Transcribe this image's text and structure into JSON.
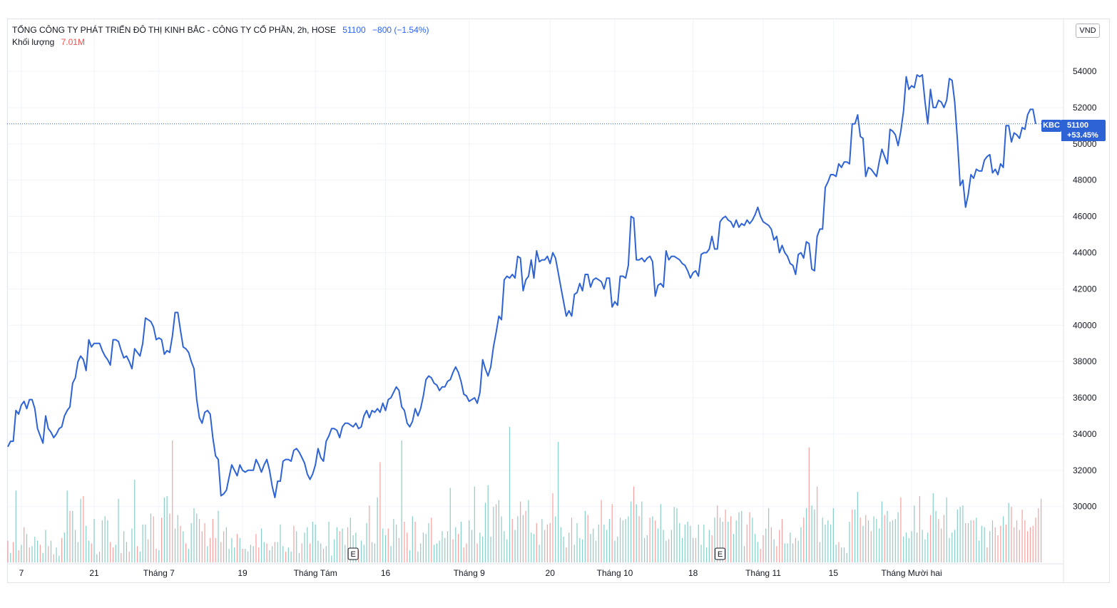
{
  "header": {
    "title": "TỔNG CÔNG TY PHÁT TRIỂN ĐÔ THỊ KINH BẮC - CÔNG TY CỔ PHẦN, 2h, HOSE",
    "price": "51100",
    "change": "−800 (−1.54%)",
    "volume_label": "Khối lượng",
    "volume_value": "7.01M"
  },
  "currency": "VND",
  "last_price_tag": {
    "symbol": "KBC",
    "price": "51100",
    "change_pct": "+53.45%"
  },
  "colors": {
    "line": "#2e63d6",
    "vol_up": "#26a69a",
    "vol_down": "#ef5350",
    "grid": "#f0f3fa"
  },
  "chart_data": {
    "type": "line",
    "title": "TỔNG CÔNG TY PHÁT TRIỂN ĐÔ THỊ KINH BẮC - CÔNG TY CỔ PHẦN, 2h, HOSE",
    "ylim": [
      28300,
      56200
    ],
    "y_ticks": [
      30000,
      32000,
      34000,
      36000,
      38000,
      40000,
      42000,
      44000,
      46000,
      48000,
      50000,
      52000,
      54000
    ],
    "x_ticks": [
      {
        "label": "7",
        "i": 5
      },
      {
        "label": "21",
        "i": 32
      },
      {
        "label": "Tháng 7",
        "i": 56
      },
      {
        "label": "19",
        "i": 87
      },
      {
        "label": "Tháng Tám",
        "i": 114
      },
      {
        "label": "16",
        "i": 140
      },
      {
        "label": "Tháng 9",
        "i": 171
      },
      {
        "label": "20",
        "i": 201
      },
      {
        "label": "Tháng 10",
        "i": 225
      },
      {
        "label": "18",
        "i": 254
      },
      {
        "label": "Tháng 11",
        "i": 280
      },
      {
        "label": "15",
        "i": 306
      },
      {
        "label": "Tháng Mười hai",
        "i": 335
      }
    ],
    "events": [
      {
        "label": "E",
        "i": 128
      },
      {
        "label": "E",
        "i": 264
      }
    ],
    "price": [
      33300,
      33600,
      33600,
      35300,
      35100,
      35600,
      35800,
      35400,
      35900,
      35900,
      35400,
      34300,
      33900,
      33500,
      35000,
      34300,
      34100,
      33800,
      34000,
      34300,
      34400,
      35000,
      35300,
      35500,
      36800,
      37100,
      38000,
      38300,
      38100,
      37500,
      39200,
      38800,
      39000,
      39000,
      39000,
      38600,
      38300,
      38100,
      37800,
      39200,
      39200,
      39100,
      38600,
      38200,
      38300,
      38000,
      37600,
      38700,
      38500,
      38300,
      39000,
      40400,
      40300,
      40200,
      39900,
      39200,
      39300,
      39200,
      38400,
      38600,
      38500,
      39400,
      40700,
      40700,
      39700,
      38800,
      38700,
      38500,
      38000,
      37600,
      35900,
      34900,
      34600,
      35200,
      35300,
      35100,
      33800,
      32800,
      32600,
      30600,
      30700,
      30900,
      31600,
      32300,
      32000,
      31700,
      32300,
      32000,
      31900,
      32000,
      32000,
      32000,
      32600,
      32300,
      31900,
      32300,
      32600,
      32000,
      31100,
      30500,
      31400,
      31400,
      32500,
      32600,
      32600,
      32500,
      33100,
      33200,
      33000,
      32700,
      32400,
      31800,
      31500,
      31800,
      32300,
      33200,
      32700,
      32500,
      33600,
      33900,
      34300,
      34300,
      34200,
      33800,
      34400,
      34600,
      34600,
      34500,
      34400,
      34600,
      34300,
      34400,
      35000,
      35300,
      34900,
      35300,
      35200,
      35400,
      35200,
      35700,
      35300,
      35900,
      36000,
      36300,
      36600,
      36400,
      35500,
      35300,
      34600,
      34400,
      34700,
      35400,
      35000,
      35400,
      36100,
      37000,
      37200,
      37100,
      36800,
      36700,
      36400,
      36600,
      36600,
      36900,
      37000,
      37400,
      37700,
      37400,
      36900,
      36200,
      36100,
      35800,
      35900,
      36000,
      35700,
      36300,
      38100,
      37600,
      37200,
      37700,
      38800,
      39600,
      40500,
      40300,
      42500,
      42700,
      42600,
      42800,
      42600,
      43800,
      43700,
      41900,
      42500,
      42700,
      43600,
      42600,
      44100,
      43500,
      43600,
      43600,
      43800,
      43400,
      44000,
      43700,
      42900,
      42100,
      41300,
      40500,
      40800,
      40500,
      41700,
      41800,
      42300,
      41900,
      42800,
      42800,
      42100,
      42500,
      42600,
      42500,
      42400,
      42000,
      42600,
      42600,
      41000,
      41300,
      41100,
      42700,
      42700,
      42600,
      43300,
      46000,
      45900,
      43600,
      43600,
      43700,
      43500,
      43700,
      43800,
      43500,
      41600,
      42200,
      42300,
      42100,
      44100,
      43600,
      43800,
      43800,
      43700,
      43600,
      43400,
      43300,
      43000,
      42600,
      42900,
      43000,
      42700,
      43900,
      44000,
      44000,
      44200,
      44900,
      44200,
      44200,
      45700,
      45900,
      46000,
      45800,
      45700,
      45400,
      45800,
      45400,
      45600,
      45500,
      45800,
      45600,
      45800,
      46100,
      46500,
      46000,
      45700,
      45600,
      45500,
      45300,
      44700,
      44900,
      44000,
      44400,
      44000,
      43800,
      43400,
      43300,
      42800,
      43900,
      44000,
      43700,
      44600,
      44500,
      43100,
      43000,
      44900,
      45300,
      45300,
      47600,
      47900,
      48300,
      48300,
      48200,
      48900,
      48700,
      49000,
      49000,
      48900,
      51100,
      51100,
      51600,
      50400,
      50300,
      48200,
      48700,
      48600,
      48400,
      48200,
      49000,
      49700,
      49300,
      48900,
      50800,
      50700,
      50500,
      49900,
      50700,
      51800,
      53700,
      53000,
      53200,
      53100,
      53800,
      53700,
      53800,
      52300,
      51100,
      53000,
      52000,
      52000,
      52400,
      52300,
      52000,
      52400,
      53600,
      53500,
      52300,
      50200,
      47700,
      48000,
      46500,
      47200,
      48300,
      48100,
      48600,
      48500,
      48500,
      49100,
      49300,
      49400,
      48400,
      48600,
      48300,
      48900,
      48700,
      51000,
      51000,
      50100,
      50600,
      50500,
      50300,
      50900,
      50800,
      51600,
      51900,
      51900,
      51100
    ],
    "volume_rel": [
      0.16,
      0.07,
      0.15,
      0.53,
      0.09,
      0.13,
      0.26,
      0.21,
      0.11,
      0.12,
      0.19,
      0.16,
      0.13,
      0.07,
      0.24,
      0.12,
      0.16,
      0.06,
      0.11,
      0.05,
      0.18,
      0.22,
      0.53,
      0.38,
      0.38,
      0.24,
      0.15,
      0.47,
      0.49,
      0.27,
      0.16,
      0.14,
      0.32,
      0.06,
      0.08,
      0.31,
      0.34,
      0.31,
      0.15,
      0.11,
      0.13,
      0.47,
      0.07,
      0.23,
      0.15,
      0.08,
      0.25,
      0.61,
      0.12,
      0.08,
      0.28,
      0.28,
      0.17,
      0.36,
      0.34,
      0.1,
      0.09,
      0.33,
      0.48,
      0.49,
      0.36,
      0.9,
      0.25,
      0.35,
      0.27,
      0.23,
      0.14,
      0.1,
      0.29,
      0.4,
      0.36,
      0.32,
      0.23,
      0.29,
      0.12,
      0.18,
      0.32,
      0.18,
      0.38,
      0.15,
      0.23,
      0.26,
      0.1,
      0.18,
      0.11,
      0.21,
      0.18,
      0.1,
      0.1,
      0.08,
      0.13,
      0.12,
      0.21,
      0.11,
      0.25,
      0.15,
      0.14,
      0.09,
      0.12,
      0.15,
      0.15,
      0.28,
      0.12,
      0.08,
      0.11,
      0.08,
      0.27,
      0.23,
      0.07,
      0.14,
      0.22,
      0.26,
      0.14,
      0.3,
      0.28,
      0.16,
      0.14,
      0.1,
      0.12,
      0.3,
      0.05,
      0.17,
      0.26,
      0.23,
      0.25,
      0.13,
      0.26,
      0.33,
      0.2,
      0.22,
      0.09,
      0.16,
      0.13,
      0.29,
      0.42,
      0.15,
      0.14,
      0.48,
      0.74,
      0.25,
      0.2,
      0.25,
      0.12,
      0.32,
      0.28,
      0.18,
      0.9,
      0.3,
      0.22,
      0.09,
      0.34,
      0.3,
      0.08,
      0.14,
      0.22,
      0.21,
      0.29,
      0.33,
      0.13,
      0.14,
      0.16,
      0.23,
      0.18,
      0.23,
      0.55,
      0.17,
      0.26,
      0.21,
      0.3,
      0.11,
      0.14,
      0.31,
      0.24,
      0.56,
      0.14,
      0.22,
      0.19,
      0.44,
      0.57,
      0.19,
      0.41,
      0.43,
      0.46,
      0.34,
      0.23,
      0.17,
      1.0,
      0.32,
      0.24,
      0.34,
      0.45,
      0.35,
      0.38,
      0.46,
      0.22,
      0.21,
      0.29,
      0.13,
      0.32,
      0.24,
      0.28,
      0.29,
      0.51,
      0.34,
      0.89,
      0.26,
      0.19,
      0.11,
      0.22,
      0.33,
      0.13,
      0.29,
      0.18,
      0.17,
      0.38,
      0.35,
      0.21,
      0.25,
      0.16,
      0.28,
      0.46,
      0.28,
      0.24,
      0.32,
      0.43,
      0.16,
      0.19,
      0.33,
      0.31,
      0.32,
      0.34,
      0.45,
      0.56,
      0.43,
      0.34,
      0.45,
      0.18,
      0.2,
      0.33,
      0.34,
      0.31,
      0.25,
      0.43,
      0.24,
      0.16,
      0.17,
      0.24,
      0.41,
      0.4,
      0.29,
      0.18,
      0.28,
      0.3,
      0.27,
      0.18,
      0.18,
      0.28,
      0.13,
      0.28,
      0.11,
      0.24,
      0.2,
      0.33,
      0.42,
      0.33,
      0.3,
      0.39,
      0.3,
      0.34,
      0.21,
      0.31,
      0.37,
      0.38,
      0.12,
      0.28,
      0.37,
      0.33,
      0.21,
      0.15,
      0.1,
      0.2,
      0.25,
      0.4,
      0.26,
      0.17,
      0.12,
      0.24,
      0.32,
      0.14,
      0.14,
      0.22,
      0.14,
      0.18,
      0.16,
      0.26,
      0.33,
      0.4,
      0.85,
      0.42,
      0.39,
      0.56,
      0.15,
      0.33,
      0.28,
      0.31,
      0.28,
      0.4,
      0.13,
      0.15,
      0.11,
      0.11,
      0.07,
      0.3,
      0.39,
      0.39,
      0.52,
      0.33,
      0.27,
      0.35,
      0.31,
      0.23,
      0.34,
      0.32,
      0.25,
      0.45,
      0.35,
      0.38,
      0.3,
      0.31,
      0.32,
      0.37,
      0.48,
      0.19,
      0.22,
      0.18,
      0.23,
      0.42,
      0.22,
      0.49,
      0.24,
      0.17,
      0.22,
      0.35,
      0.51,
      0.38,
      0.32,
      0.25,
      0.35,
      0.48,
      0.18,
      0.22,
      0.24,
      0.39,
      0.41,
      0.42,
      0.29,
      0.29,
      0.31,
      0.31,
      0.33,
      0.16,
      0.27,
      0.26,
      0.11,
      0.23,
      0.31,
      0.26,
      0.2,
      0.27,
      0.34,
      0.28,
      0.44,
      0.41,
      0.26,
      0.31,
      0.24,
      0.39,
      0.31,
      0.23,
      0.26,
      0.27,
      0.33,
      0.4,
      0.47
    ],
    "volume_up": [
      0,
      1,
      0,
      1,
      0,
      1,
      0,
      1,
      0,
      1,
      1,
      1,
      0,
      1,
      1,
      0,
      1,
      0,
      1,
      1,
      0,
      1,
      1,
      0,
      1,
      1,
      1,
      1,
      0,
      1,
      1,
      0,
      1,
      1,
      0,
      1,
      1,
      1,
      0,
      0,
      1,
      1,
      0,
      1,
      1,
      0,
      1,
      1,
      0,
      1,
      1,
      1,
      0,
      1,
      0,
      0,
      1,
      0,
      1,
      1,
      0,
      0,
      1,
      1,
      0,
      1,
      0,
      1,
      1,
      1,
      1,
      0,
      0,
      0,
      1,
      0,
      0,
      0,
      1,
      0,
      0,
      1,
      1,
      1,
      1,
      0,
      1,
      0,
      1,
      1,
      1,
      1,
      0,
      0,
      1,
      1,
      0,
      1,
      1,
      0,
      1,
      1,
      1,
      0,
      1,
      1,
      0,
      1,
      1,
      0,
      1,
      1,
      0,
      1,
      1,
      1,
      1,
      0,
      1,
      1,
      1,
      1,
      1,
      0,
      1,
      1,
      0,
      1,
      1,
      1,
      0,
      1,
      1,
      1,
      0,
      1,
      1,
      1,
      0,
      1,
      1,
      0,
      1,
      1,
      1,
      0,
      1,
      0,
      0,
      1,
      1,
      0,
      1,
      1,
      1,
      1,
      1,
      0,
      1,
      1,
      1,
      1,
      1,
      1,
      1,
      0,
      1,
      0,
      1,
      0,
      0,
      1,
      1,
      1,
      0,
      1,
      1,
      1,
      1,
      1,
      1,
      0,
      1,
      1,
      1,
      1,
      1,
      0,
      1,
      1,
      0,
      1,
      0,
      1,
      1,
      1,
      0,
      1,
      1,
      0,
      0,
      0,
      0,
      1,
      1,
      1,
      1,
      0,
      1,
      0,
      1,
      1,
      1,
      1,
      1,
      0,
      1,
      1,
      1,
      1,
      0,
      1,
      1,
      1,
      0,
      1,
      1,
      1,
      1,
      1,
      1,
      1,
      0,
      1,
      0,
      1,
      1,
      1,
      0,
      1,
      0,
      1,
      1,
      1,
      1,
      0,
      1,
      1,
      1,
      1,
      1,
      1,
      1,
      1,
      1,
      0,
      1,
      1,
      1,
      1,
      1,
      0,
      1,
      0,
      1,
      1,
      0,
      1,
      0,
      1,
      1,
      1,
      1,
      1,
      0,
      0,
      1,
      1,
      1,
      0,
      0,
      1,
      1,
      0,
      1,
      0,
      0,
      0,
      1,
      1,
      1,
      1,
      0,
      1,
      1,
      0,
      1,
      0,
      1,
      1,
      0,
      1,
      1,
      1,
      1,
      1,
      1,
      1,
      0,
      1,
      1,
      1,
      1,
      0,
      1,
      1,
      0,
      1,
      0,
      1,
      0,
      1,
      1,
      1,
      1,
      0,
      1,
      1,
      1,
      1,
      1,
      0,
      1,
      1,
      1,
      1,
      1,
      1,
      0,
      1,
      1,
      1,
      0,
      1,
      1,
      0,
      0,
      0,
      1,
      1,
      1,
      1,
      1,
      1,
      1,
      0,
      1,
      1,
      0,
      1,
      1,
      1,
      1,
      0,
      1,
      1,
      0,
      0,
      0,
      1,
      0,
      1,
      0,
      0
    ]
  }
}
